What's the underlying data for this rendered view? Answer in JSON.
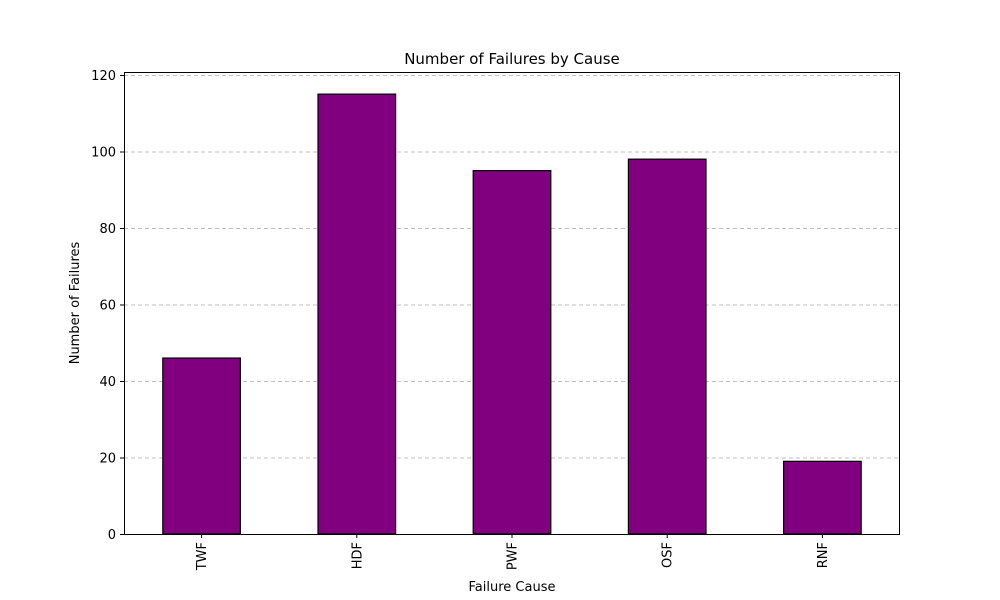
{
  "chart_data": {
    "type": "bar",
    "title": "Number of Failures by Cause",
    "xlabel": "Failure Cause",
    "ylabel": "Number of Failures",
    "categories": [
      "TWF",
      "HDF",
      "PWF",
      "OSF",
      "RNF"
    ],
    "values": [
      46,
      115,
      95,
      98,
      19
    ],
    "ylim": [
      0,
      120
    ],
    "yticks": [
      0,
      20,
      40,
      60,
      80,
      100,
      120
    ],
    "grid": "horizontal dashed",
    "legend": "none",
    "bar_color": "#800080",
    "bar_edge_color": "#000000",
    "grid_color": "#bfbfbf"
  }
}
